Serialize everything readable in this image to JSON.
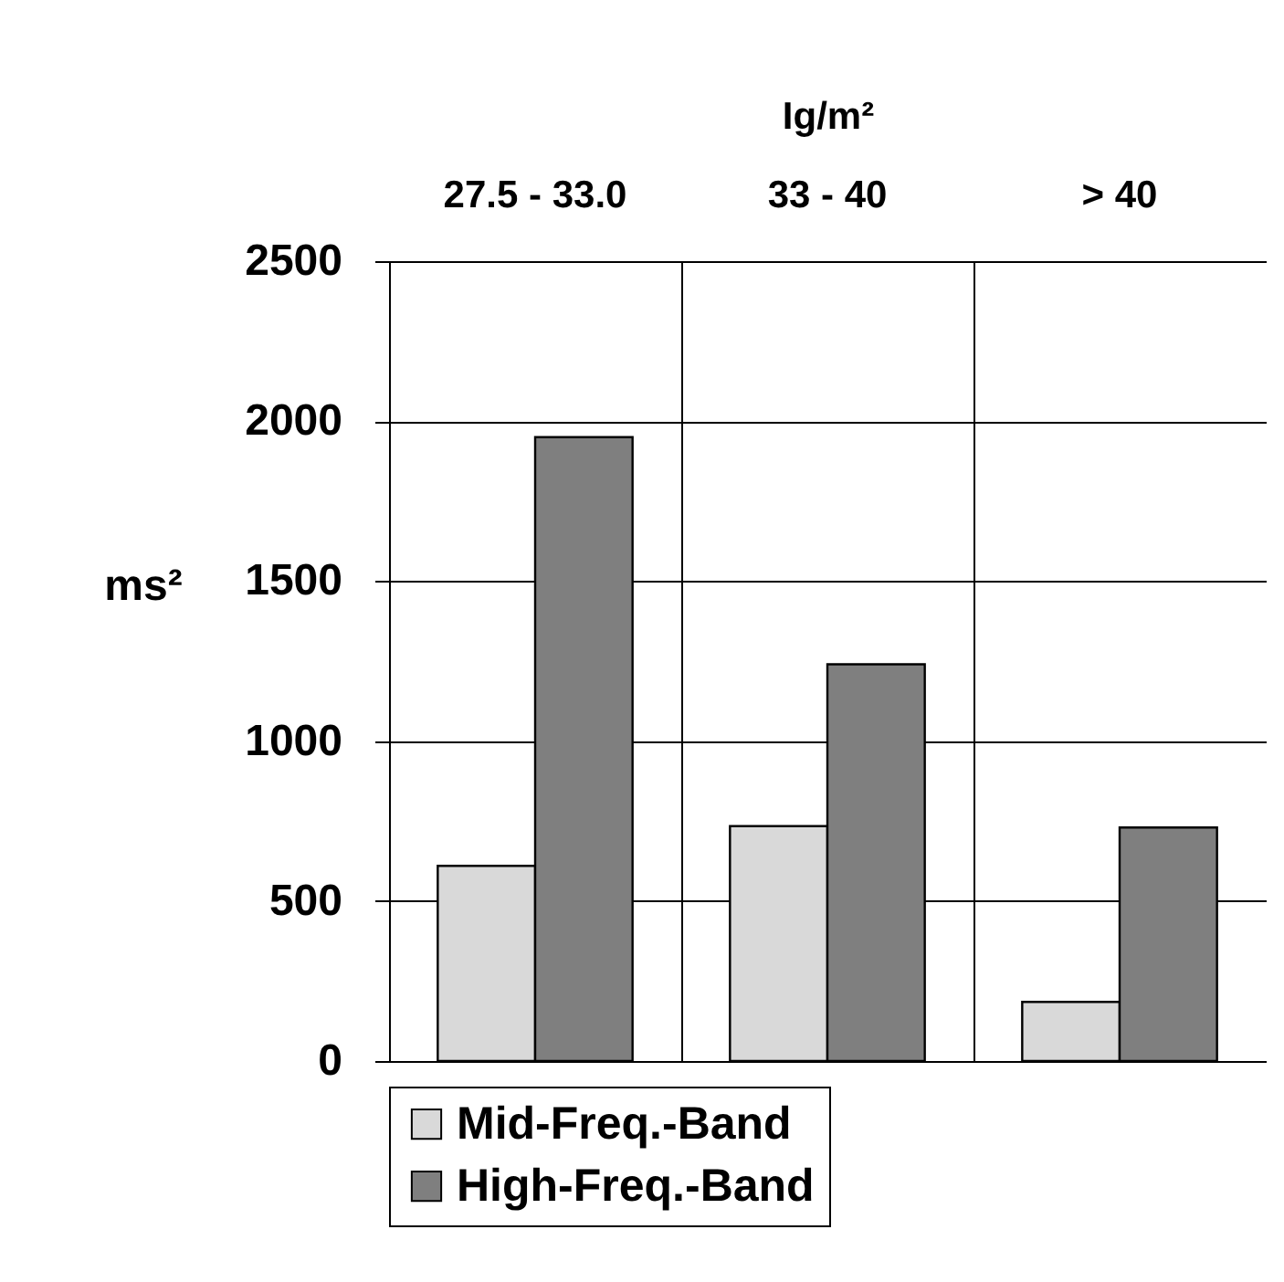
{
  "chart_data": {
    "type": "bar",
    "xlabel": "Ig/m²",
    "ylabel": "ms²",
    "categories": [
      "27.5 - 33.0",
      "33 - 40",
      "> 40"
    ],
    "series": [
      {
        "name": "Mid-Freq.-Band",
        "color": "#d9d9d9",
        "values": [
          610,
          734,
          185
        ]
      },
      {
        "name": "High-Freq.-Band",
        "color": "#7f7f7f",
        "values": [
          1950,
          1240,
          730
        ]
      }
    ],
    "ylim": [
      0,
      2500
    ],
    "yticks": [
      0,
      500,
      1000,
      1500,
      2000,
      2500
    ],
    "grid": true,
    "legend": "bottom left"
  }
}
